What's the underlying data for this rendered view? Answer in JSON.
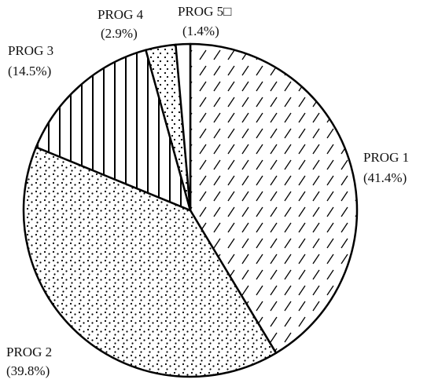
{
  "chart_data": {
    "type": "pie",
    "title": "",
    "slices": [
      {
        "label": "PROG 1",
        "pct_label": "(41.4%)",
        "value": 41.4,
        "pattern": "diagonal-hatch"
      },
      {
        "label": "PROG 2",
        "pct_label": "(39.8%)",
        "value": 39.8,
        "pattern": "dots"
      },
      {
        "label": "PROG 3",
        "pct_label": "(14.5%)",
        "value": 14.5,
        "pattern": "vertical-lines"
      },
      {
        "label": "PROG 4",
        "pct_label": "(2.9%)",
        "value": 2.9,
        "pattern": "sparse-dots"
      },
      {
        "label": "PROG 5□",
        "pct_label": "(1.4%)",
        "value": 1.4,
        "pattern": "none"
      }
    ],
    "start_angle_deg": 0,
    "direction": "clockwise",
    "colors": {
      "fill": "#ffffff",
      "stroke": "#000000",
      "pattern": "#000000"
    }
  }
}
